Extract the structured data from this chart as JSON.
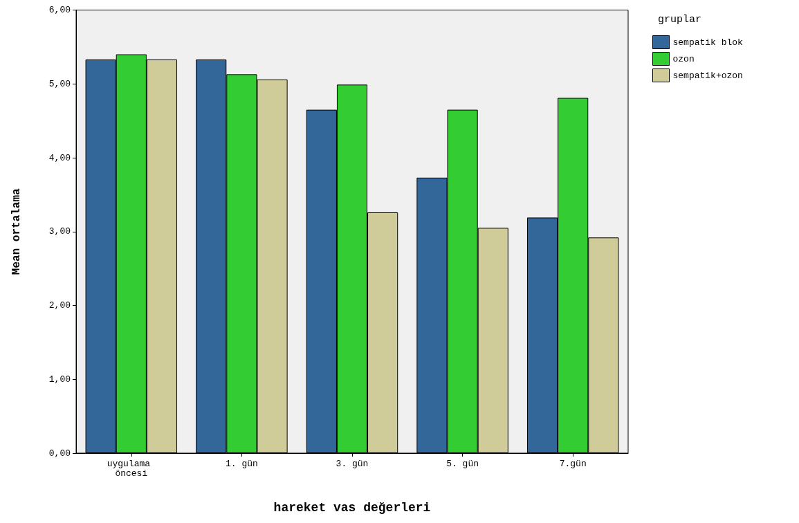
{
  "chart_data": {
    "type": "bar",
    "xlabel": "hareket vas değerleri",
    "ylabel": "Mean ortalama",
    "legend_title": "gruplar",
    "legend": "top right",
    "grid": false,
    "categories": [
      "uygulama öncesi",
      "1. gün",
      "3. gün",
      "5. gün",
      "7.gün"
    ],
    "ylim": [
      0,
      6
    ],
    "yticks": [
      {
        "value": 0,
        "label": "0,00"
      },
      {
        "value": 1,
        "label": "1,00"
      },
      {
        "value": 2,
        "label": "2,00"
      },
      {
        "value": 3,
        "label": "3,00"
      },
      {
        "value": 4,
        "label": "4,00"
      },
      {
        "value": 5,
        "label": "5,00"
      },
      {
        "value": 6,
        "label": "6,00"
      }
    ],
    "series": [
      {
        "name": "sempatik blok",
        "color": "#336699",
        "values": [
          5.33,
          5.33,
          4.65,
          3.73,
          3.19
        ]
      },
      {
        "name": "ozon",
        "color": "#33cc33",
        "values": [
          5.4,
          5.13,
          4.99,
          4.65,
          4.81
        ]
      },
      {
        "name": "sempatik+ozon",
        "color": "#cfcc99",
        "values": [
          5.33,
          5.06,
          3.26,
          3.05,
          2.92
        ]
      }
    ]
  }
}
